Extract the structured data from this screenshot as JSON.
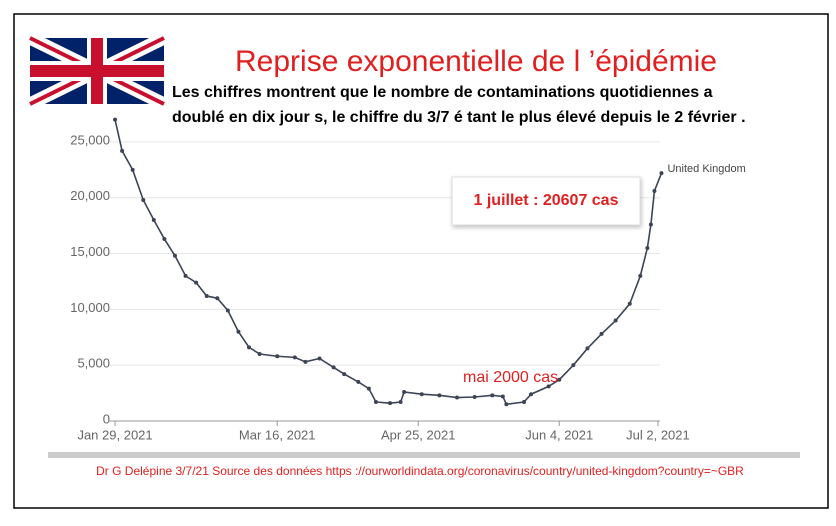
{
  "chart_data": {
    "type": "line",
    "title": "Reprise exponentielle de l ’épidémie",
    "subtitle": [
      "Les chiffres montrent que le nombre de contaminations quotidiennes a",
      "doublé en dix jour s, le chiffre du 3/7 é tant le plus élevé depuis le 2 février ."
    ],
    "annotations": [
      "1 juillet : 20607 cas",
      "mai 2000 cas"
    ],
    "source": "Dr G Delépine 3/7/21 Source des données https  ://ourworldindata.org/coronavirus/country/united-kingdom?country=~GBR",
    "x": [
      "2021-01-29",
      "2021-01-31",
      "2021-02-03",
      "2021-02-06",
      "2021-02-09",
      "2021-02-12",
      "2021-02-15",
      "2021-02-18",
      "2021-02-21",
      "2021-02-24",
      "2021-02-27",
      "2021-03-02",
      "2021-03-05",
      "2021-03-08",
      "2021-03-11",
      "2021-03-16",
      "2021-03-21",
      "2021-03-24",
      "2021-03-28",
      "2021-04-01",
      "2021-04-04",
      "2021-04-08",
      "2021-04-11",
      "2021-04-13",
      "2021-04-17",
      "2021-04-20",
      "2021-04-21",
      "2021-04-26",
      "2021-05-01",
      "2021-05-06",
      "2021-05-11",
      "2021-05-16",
      "2021-05-19",
      "2021-05-20",
      "2021-05-25",
      "2021-05-27",
      "2021-06-01",
      "2021-06-04",
      "2021-06-08",
      "2021-06-12",
      "2021-06-16",
      "2021-06-20",
      "2021-06-24",
      "2021-06-27",
      "2021-06-29",
      "2021-06-30",
      "2021-07-01",
      "2021-07-03"
    ],
    "series": [
      {
        "name": "United Kingdom",
        "color": "#3c4555",
        "values": [
          27000,
          24200,
          22500,
          19800,
          18000,
          16300,
          14800,
          13000,
          12400,
          11200,
          11000,
          9900,
          8000,
          6600,
          6000,
          5800,
          5700,
          5300,
          5600,
          4800,
          4200,
          3500,
          2900,
          1700,
          1600,
          1700,
          2600,
          2400,
          2300,
          2100,
          2150,
          2300,
          2200,
          1500,
          1700,
          2400,
          3100,
          3700,
          5000,
          6500,
          7800,
          9000,
          10500,
          13000,
          15500,
          17600,
          20607,
          22200
        ]
      }
    ],
    "xlim": [
      "2021-01-27",
      "2021-07-04"
    ],
    "xticks": [
      {
        "value": "2021-01-29",
        "label": "Jan 29, 2021"
      },
      {
        "value": "2021-03-16",
        "label": "Mar 16, 2021"
      },
      {
        "value": "2021-04-25",
        "label": "Apr 25, 2021"
      },
      {
        "value": "2021-06-04",
        "label": "Jun 4, 2021"
      },
      {
        "value": "2021-07-02",
        "label": "Jul 2, 2021"
      }
    ],
    "ylim": [
      0,
      27500
    ],
    "yticks": [
      0,
      {
        "value": 5000,
        "label": "5,000"
      },
      {
        "value": 10000,
        "label": "10,000"
      },
      {
        "value": 15000,
        "label": "15,000"
      },
      {
        "value": 20000,
        "label": "20,000"
      },
      {
        "value": 25000,
        "label": "25,000"
      }
    ],
    "grid": true
  }
}
